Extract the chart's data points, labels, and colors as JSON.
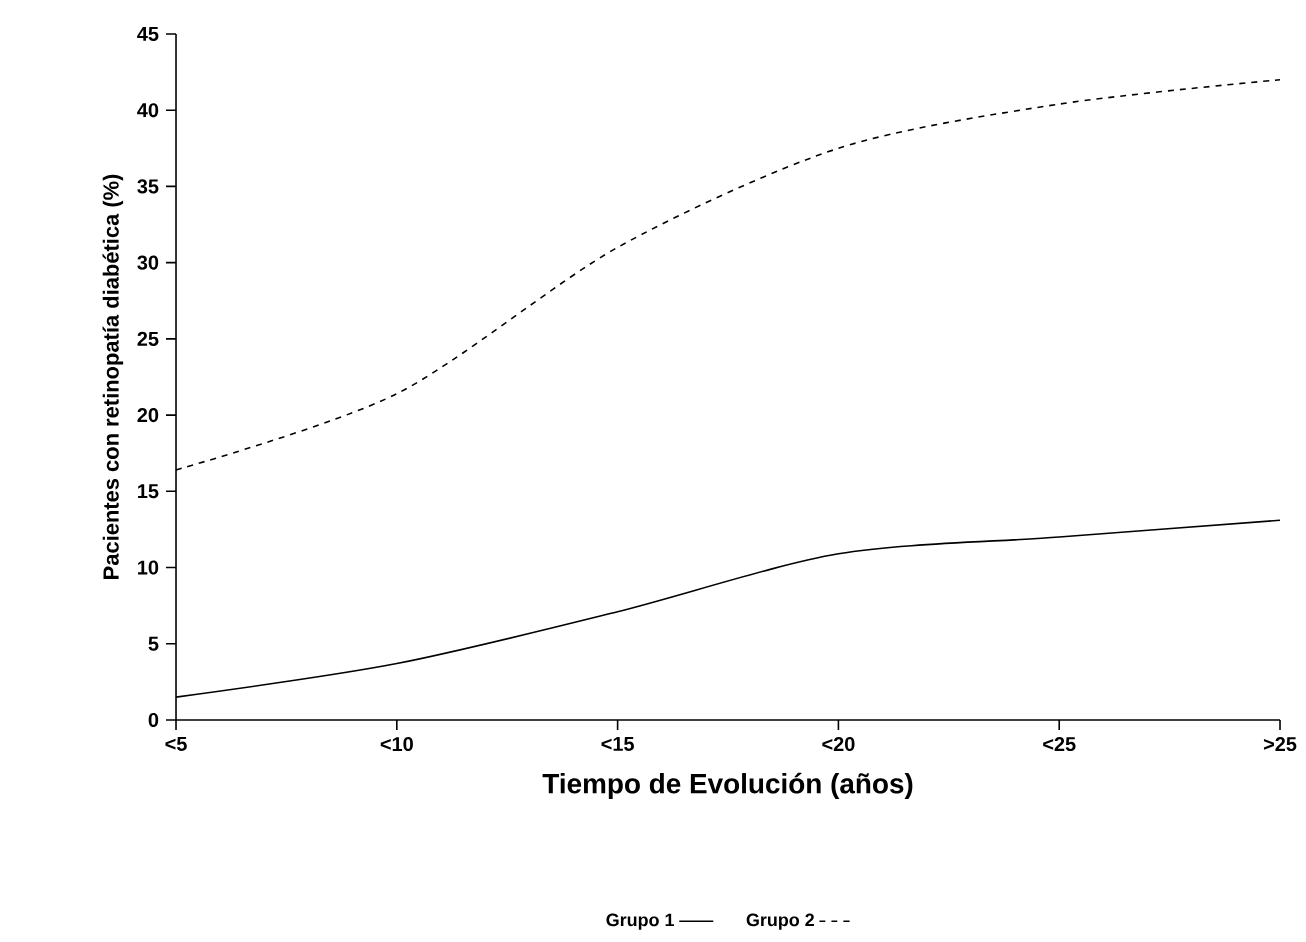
{
  "chart_data": {
    "type": "line",
    "xlabel": "Tiempo de Evolución (años)",
    "ylabel": "Pacientes con retinopatía diabética (%)",
    "categories": [
      "<5",
      "<10",
      "<15",
      "<20",
      "<25",
      ">25"
    ],
    "ylim": [
      0,
      45
    ],
    "yticks": [
      0,
      5,
      10,
      15,
      20,
      25,
      30,
      35,
      40,
      45
    ],
    "legend": "bottom",
    "marker": "none",
    "series": [
      {
        "name": "Grupo 1",
        "color": "#000000",
        "line_style": "solid",
        "values": [
          1.5,
          3.7,
          7.1,
          10.9,
          12.0,
          13.1
        ]
      },
      {
        "name": "Grupo 2",
        "color": "#000000",
        "line_style": "dashed",
        "values": [
          16.4,
          21.4,
          31.0,
          37.5,
          40.4,
          42.0
        ]
      }
    ]
  }
}
